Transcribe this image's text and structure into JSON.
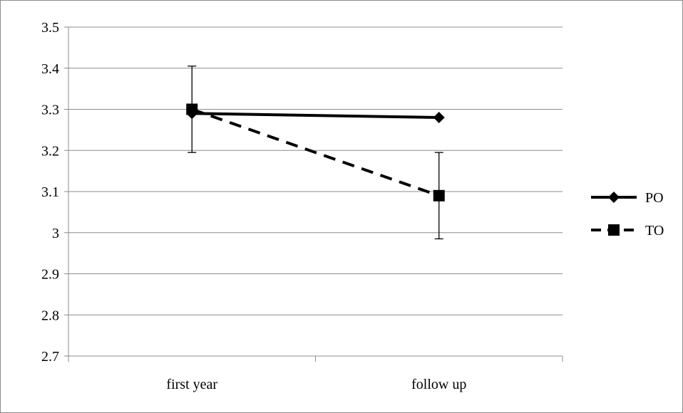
{
  "chart_data": {
    "type": "line",
    "categories": [
      "first year",
      "follow up"
    ],
    "series": [
      {
        "name": "PO",
        "values": [
          3.29,
          3.28
        ],
        "line_style": "solid",
        "marker": "diamond",
        "color": "#000000"
      },
      {
        "name": "TO",
        "values": [
          3.3,
          3.09
        ],
        "line_style": "dashed",
        "marker": "square",
        "color": "#000000",
        "error_bars": [
          0.105,
          0.105
        ]
      }
    ],
    "ylim": [
      2.7,
      3.5
    ],
    "yticks": [
      "2.7",
      "2.8",
      "2.9",
      "3",
      "3.1",
      "3.2",
      "3.3",
      "3.4",
      "3.5"
    ],
    "grid": true,
    "legend_position": "right"
  }
}
